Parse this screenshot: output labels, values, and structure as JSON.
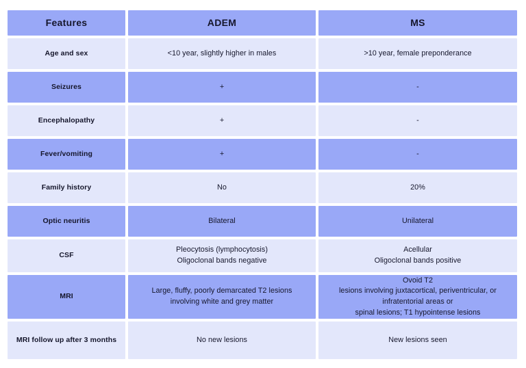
{
  "colors": {
    "row_dark": "#99a8f7",
    "row_light": "#e3e7fb",
    "text": "#15162b",
    "page_background": "#ffffff"
  },
  "table": {
    "columns": [
      "Features",
      "ADEM",
      "MS"
    ],
    "rows": [
      {
        "feature": "Age and sex",
        "adem": "<10 year, slightly higher in males",
        "ms": ">10 year, female preponderance"
      },
      {
        "feature": "Seizures",
        "adem": "+",
        "ms": "-"
      },
      {
        "feature": "Encephalopathy",
        "adem": "+",
        "ms": "-"
      },
      {
        "feature": "Fever/vomiting",
        "adem": "+",
        "ms": "-"
      },
      {
        "feature": "Family history",
        "adem": "No",
        "ms": "20%"
      },
      {
        "feature": "Optic neuritis",
        "adem": "Bilateral",
        "ms": "Unilateral"
      },
      {
        "feature": "CSF",
        "adem": "Pleocytosis (lymphocytosis)\nOligoclonal bands negative",
        "ms": "Acellular\nOligoclonal bands positive"
      },
      {
        "feature": "MRI",
        "adem": "Large, fluffy, poorly demarcated T2 lesions\ninvolving white and grey matter",
        "ms": "Ovoid T2\nlesions involving juxtacortical, periventricular, or\ninfratentorial areas or\nspinal lesions; T1 hypointense lesions"
      },
      {
        "feature": "MRI follow up after 3 months",
        "adem": "No new lesions",
        "ms": "New lesions seen"
      }
    ]
  }
}
